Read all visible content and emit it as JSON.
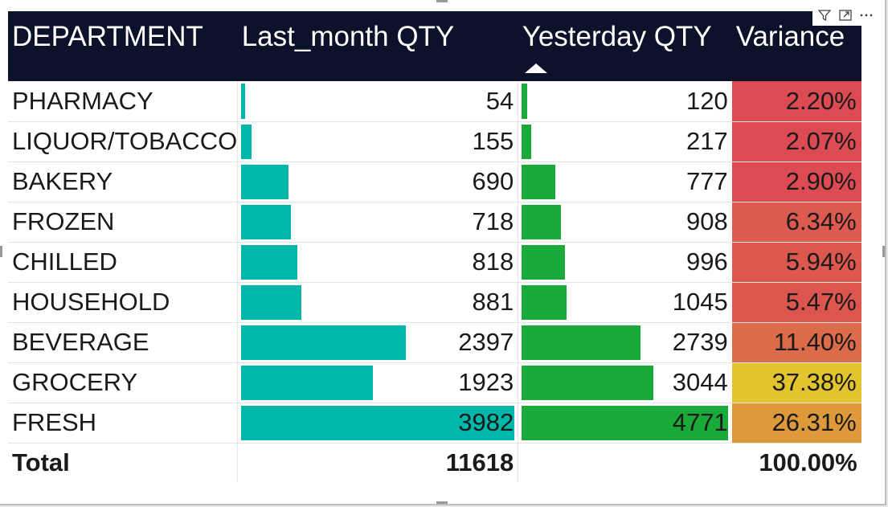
{
  "header_icons": [
    "filter-icon",
    "focus-mode-icon",
    "more-options-icon"
  ],
  "columns": {
    "department": "DEPARTMENT",
    "last_month": "Last_month QTY",
    "yesterday": "Yesterday QTY",
    "variance": "Variance"
  },
  "sort": {
    "column": "Yesterday QTY",
    "direction": "ascending"
  },
  "colors": {
    "header_bg": "#0b1229",
    "last_month_bar": "#00b8aa",
    "yesterday_bar": "#1aaa3a"
  },
  "bar_max": {
    "last_month": 3982,
    "yesterday": 4771
  },
  "rows": [
    {
      "department": "PHARMACY",
      "last_month": "54",
      "yesterday": "120",
      "variance": "2.20%",
      "variance_color": "#dc4a52"
    },
    {
      "department": "LIQUOR/TOBACCO",
      "last_month": "155",
      "yesterday": "217",
      "variance": "2.07%",
      "variance_color": "#dc4a52"
    },
    {
      "department": "BAKERY",
      "last_month": "690",
      "yesterday": "777",
      "variance": "2.90%",
      "variance_color": "#dc4b51"
    },
    {
      "department": "FROZEN",
      "last_month": "718",
      "yesterday": "908",
      "variance": "6.34%",
      "variance_color": "#dc5a4f"
    },
    {
      "department": "CHILLED",
      "last_month": "818",
      "yesterday": "996",
      "variance": "5.94%",
      "variance_color": "#dc584f"
    },
    {
      "department": "HOUSEHOLD",
      "last_month": "881",
      "yesterday": "1045",
      "variance": "5.47%",
      "variance_color": "#dc554f"
    },
    {
      "department": "BEVERAGE",
      "last_month": "2397",
      "yesterday": "2739",
      "variance": "11.40%",
      "variance_color": "#dc6b4a"
    },
    {
      "department": "GROCERY",
      "last_month": "1923",
      "yesterday": "3044",
      "variance": "37.38%",
      "variance_color": "#e2c42e"
    },
    {
      "department": "FRESH",
      "last_month": "3982",
      "yesterday": "4771",
      "variance": "26.31%",
      "variance_color": "#de993a"
    }
  ],
  "total": {
    "label": "Total",
    "last_month": "11618",
    "yesterday": "",
    "variance": "100.00%"
  }
}
